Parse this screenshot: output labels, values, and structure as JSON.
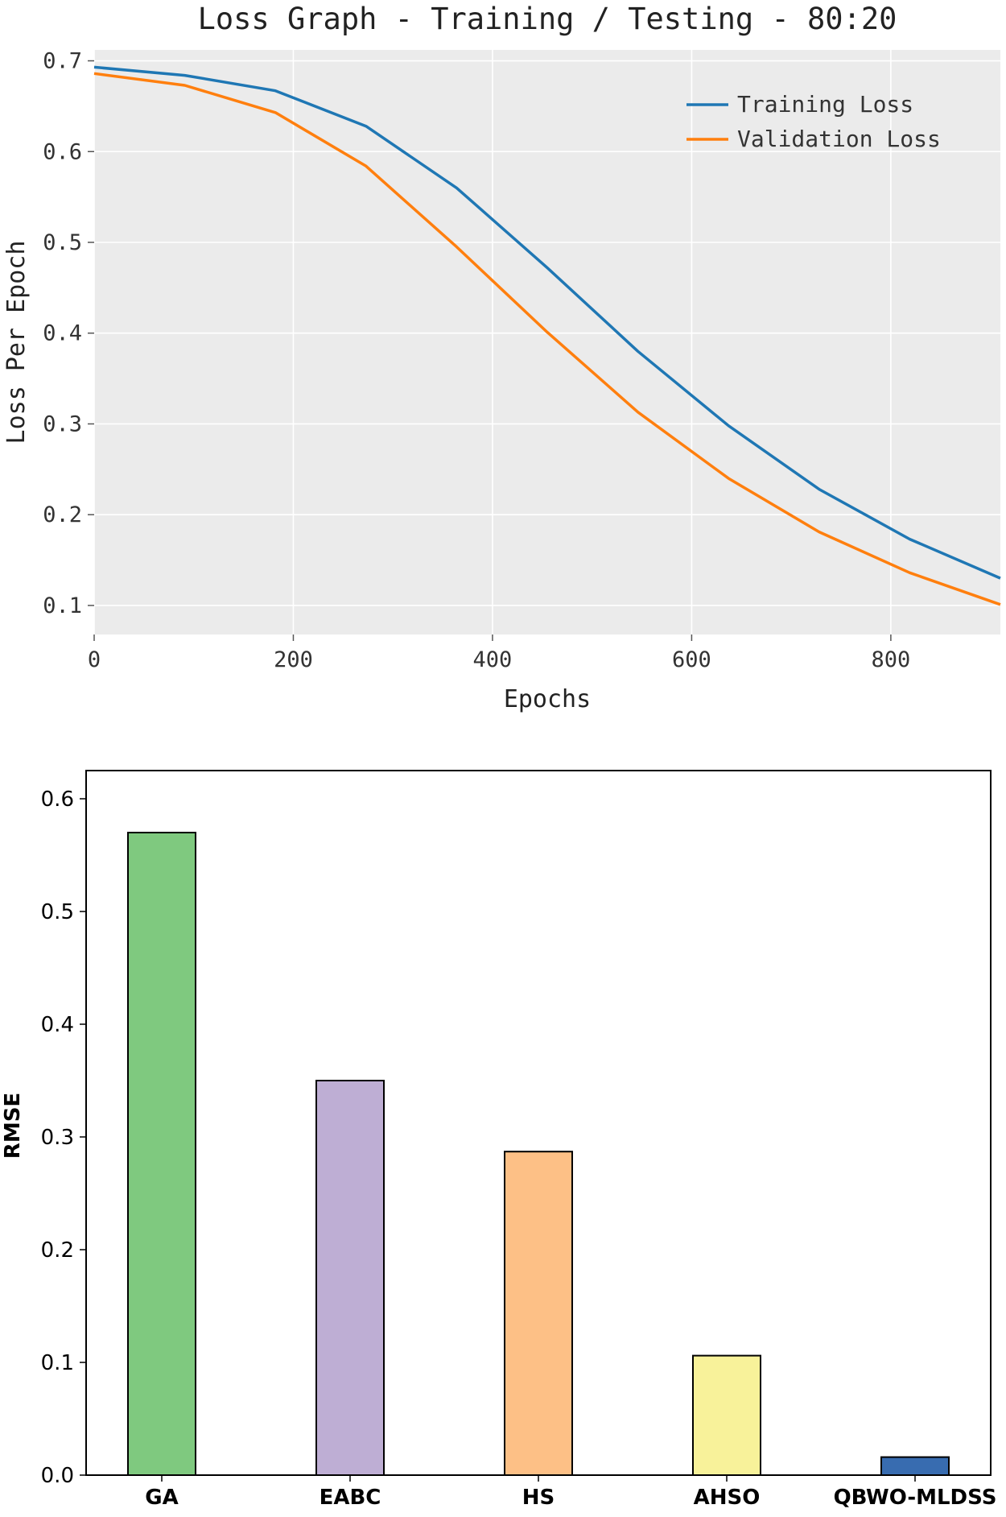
{
  "chart_data": [
    {
      "type": "line",
      "title": "Loss Graph - Training / Testing - 80:20",
      "xlabel": "Epochs",
      "ylabel": "Loss Per Epoch",
      "xlim": [
        0,
        910
      ],
      "ylim": [
        0.068,
        0.712
      ],
      "xticks": [
        0,
        200,
        400,
        600,
        800
      ],
      "yticks": [
        0.1,
        0.2,
        0.3,
        0.4,
        0.5,
        0.6,
        0.7
      ],
      "ytick_labels": [
        "0.1",
        "0.2",
        "0.3",
        "0.4",
        "0.5",
        "0.6",
        "0.7"
      ],
      "grid": true,
      "legend_position": "top-right",
      "series": [
        {
          "name": "Training Loss",
          "color": "#1f77b4",
          "x": [
            0,
            91,
            182,
            273,
            364,
            455,
            546,
            637,
            728,
            819,
            910
          ],
          "y": [
            0.693,
            0.684,
            0.667,
            0.628,
            0.56,
            0.472,
            0.38,
            0.298,
            0.228,
            0.173,
            0.13
          ]
        },
        {
          "name": "Validation Loss",
          "color": "#ff7f0e",
          "x": [
            0,
            91,
            182,
            273,
            364,
            455,
            546,
            637,
            728,
            819,
            910
          ],
          "y": [
            0.686,
            0.673,
            0.643,
            0.584,
            0.495,
            0.401,
            0.313,
            0.24,
            0.181,
            0.136,
            0.101
          ]
        }
      ]
    },
    {
      "type": "bar",
      "title": "",
      "xlabel": "",
      "ylabel": "RMSE",
      "ylim": [
        0,
        0.625
      ],
      "yticks": [
        0.0,
        0.1,
        0.2,
        0.3,
        0.4,
        0.5,
        0.6
      ],
      "ytick_labels": [
        "0.0",
        "0.1",
        "0.2",
        "0.3",
        "0.4",
        "0.5",
        "0.6"
      ],
      "grid": false,
      "categories": [
        "GA",
        "EABC",
        "HS",
        "AHSO",
        "QBWO-MLDSS"
      ],
      "values": [
        0.57,
        0.35,
        0.287,
        0.106,
        0.016
      ],
      "colors": [
        "#7fc97f",
        "#beaed4",
        "#fdc086",
        "#f8f29a",
        "#386cb0"
      ]
    }
  ]
}
